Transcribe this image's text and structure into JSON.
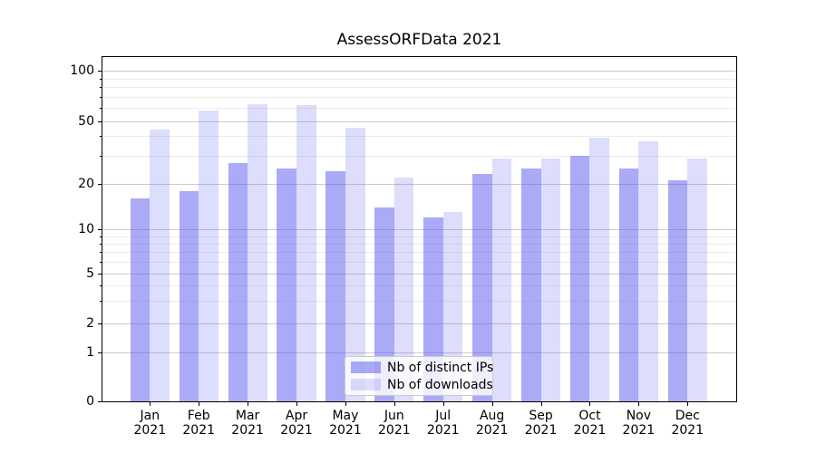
{
  "title": "AssessORFData 2021",
  "chart_data": {
    "type": "bar",
    "title": "AssessORFData 2021",
    "categories": [
      "Jan 2021",
      "Feb 2021",
      "Mar 2021",
      "Apr 2021",
      "May 2021",
      "Jun 2021",
      "Jul 2021",
      "Aug 2021",
      "Sep 2021",
      "Oct 2021",
      "Nov 2021",
      "Dec 2021"
    ],
    "series": [
      {
        "name": "Nb of distinct IPs",
        "values": [
          16,
          18,
          27,
          25,
          24,
          14,
          12,
          23,
          25,
          30,
          25,
          21
        ],
        "color": "#aaaaf7"
      },
      {
        "name": "Nb of downloads",
        "values": [
          44,
          58,
          63,
          62,
          45,
          22,
          13,
          29,
          29,
          39,
          37,
          29
        ],
        "color": "#dcdcfb"
      }
    ],
    "xlabel": "",
    "ylabel": "",
    "y_axis": {
      "scale": "symlog",
      "ticks": [
        100,
        50,
        20,
        10,
        5,
        2,
        1,
        0
      ],
      "minor_ticks": [
        3,
        4,
        6,
        7,
        8,
        9,
        30,
        40,
        60,
        70,
        80,
        90
      ],
      "range": [
        0,
        110
      ]
    },
    "grid": true,
    "legend": {
      "position": "lower-center",
      "entries": [
        "Nb of distinct IPs",
        "Nb of downloads"
      ]
    }
  },
  "colors": {
    "bar_distinct_ips": "#aaaaf7",
    "bar_downloads": "#dcdcfb",
    "grid_major": "#cccccc",
    "grid_minor": "#ececec",
    "axis": "#000000",
    "text": "#000000",
    "legend_border": "#cccccc"
  }
}
